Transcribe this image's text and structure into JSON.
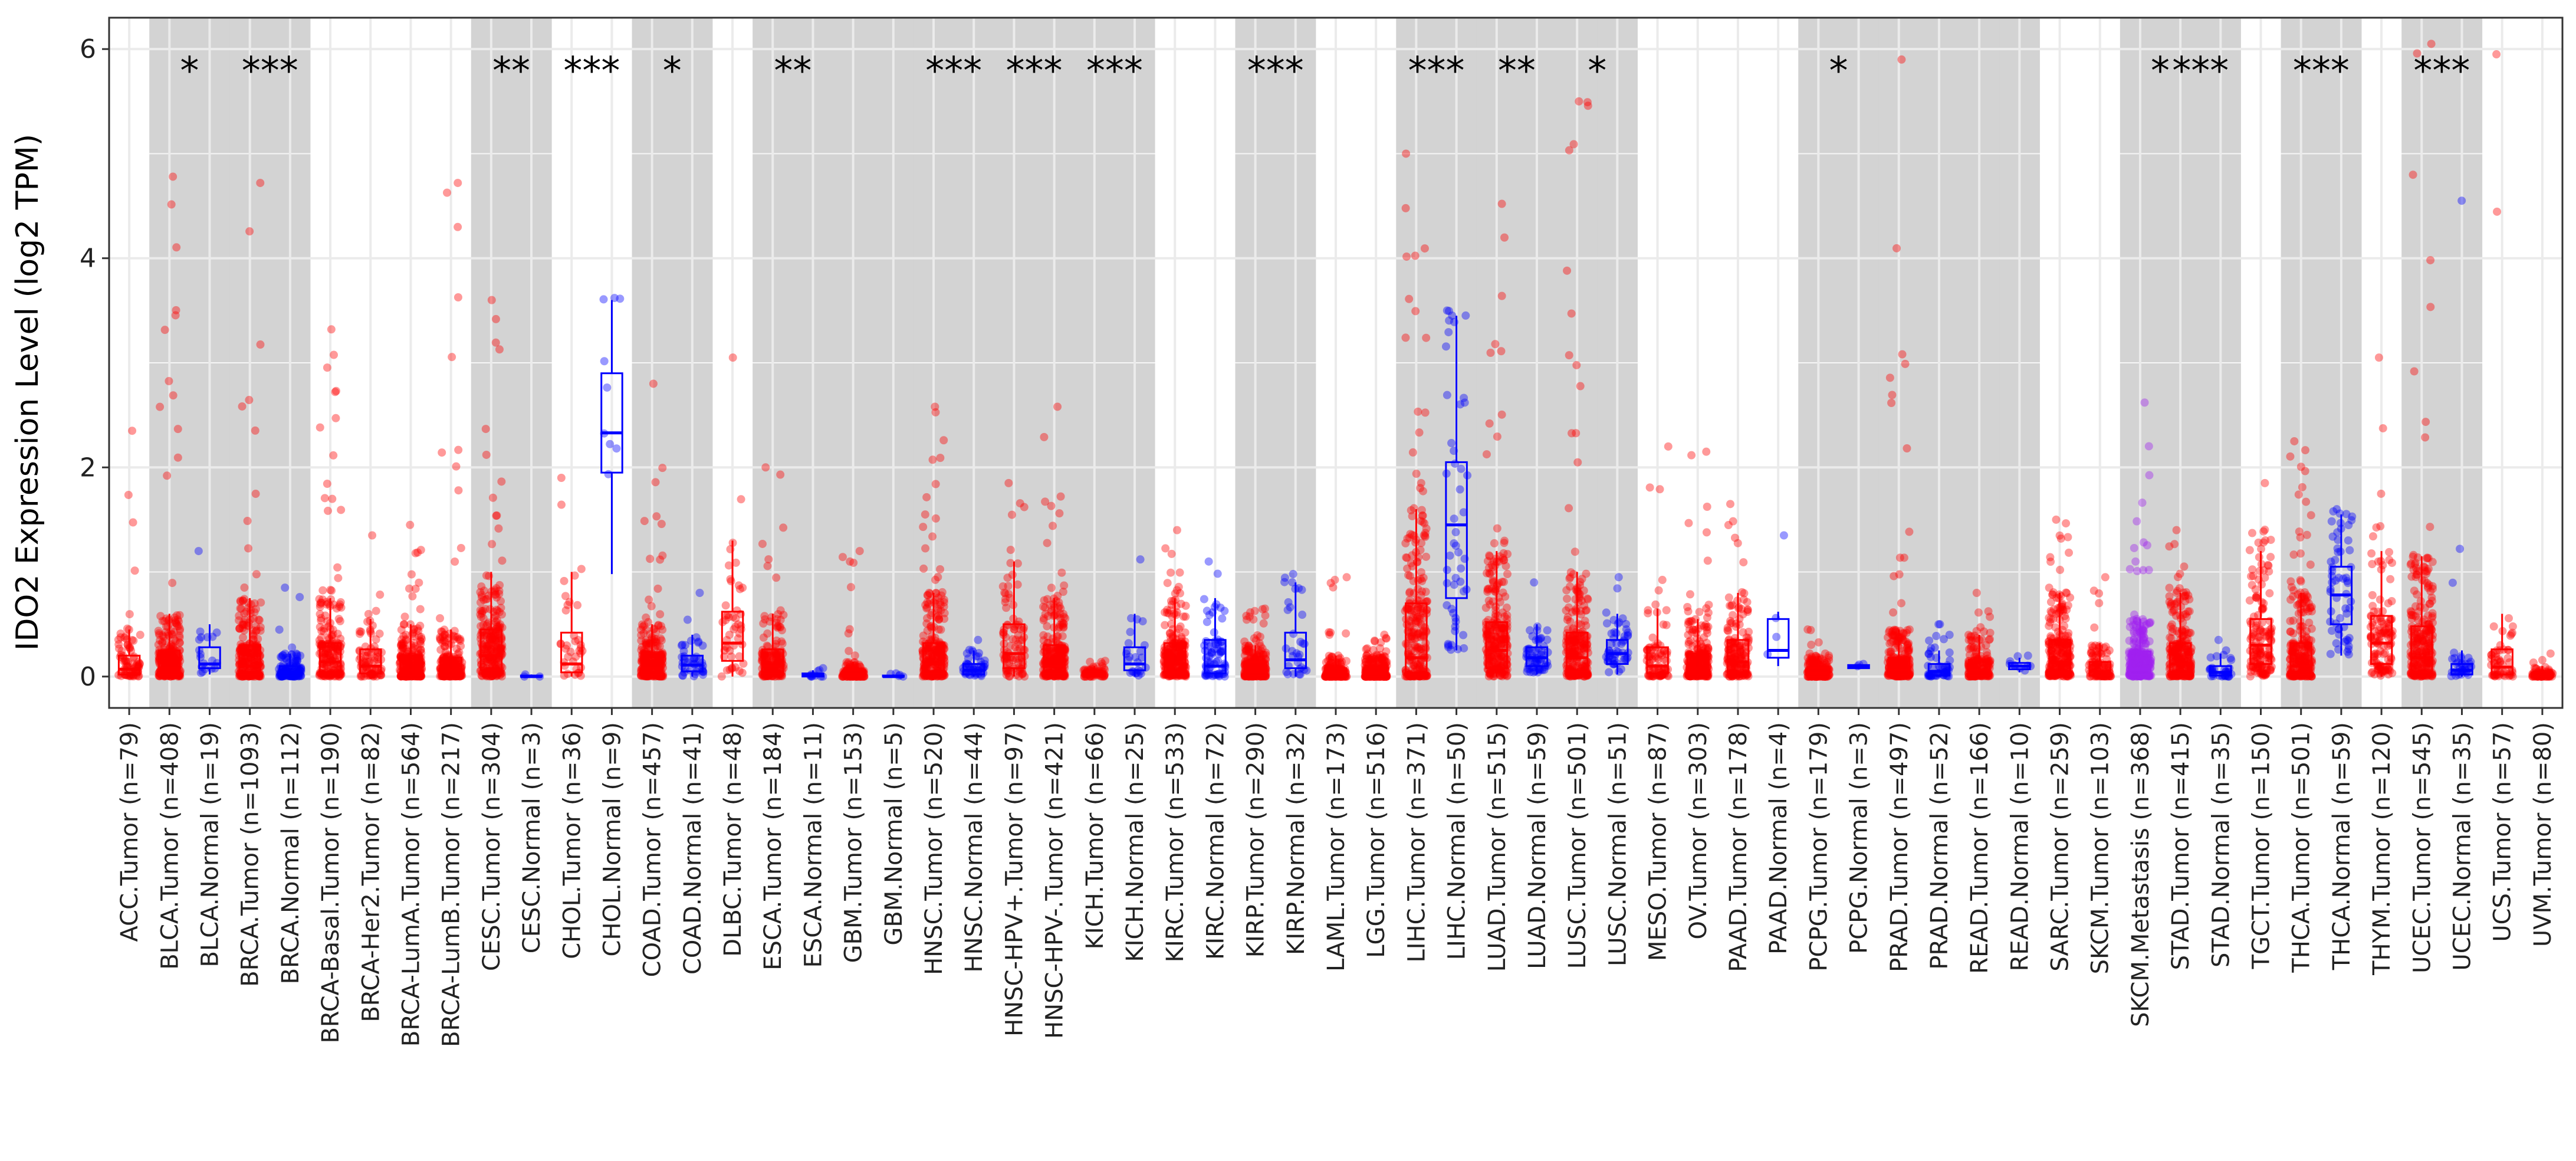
{
  "chart_data": {
    "type": "box",
    "title": "",
    "ylabel": "IDO2 Expression Level (log2 TPM)",
    "xlabel": "",
    "ylim": [
      -0.3,
      6.3
    ],
    "yticks": [
      0,
      2,
      4,
      6
    ],
    "ytick_labels": [
      "0",
      "2",
      "4",
      "6"
    ],
    "grid": true,
    "colors": {
      "tumor": "#ff0000",
      "normal": "#0000ff",
      "metastasis": "#a020f0",
      "shade": "#d3d3d3"
    },
    "groups": [
      {
        "label": "ACC.Tumor (n=79)",
        "kind": "tumor",
        "shaded": false,
        "sig": "",
        "q1": 0.02,
        "median": 0.07,
        "q3": 0.2,
        "lo": 0.0,
        "hi": 0.45,
        "max": 2.35
      },
      {
        "label": "BLCA.Tumor (n=408)",
        "kind": "tumor",
        "shaded": true,
        "sig": "*",
        "q1": 0.02,
        "median": 0.08,
        "q3": 0.25,
        "lo": 0.0,
        "hi": 0.6,
        "max": 4.78
      },
      {
        "label": "BLCA.Normal (n=19)",
        "kind": "normal",
        "shaded": true,
        "sig": "",
        "q1": 0.08,
        "median": 0.12,
        "q3": 0.28,
        "lo": 0.02,
        "hi": 0.5,
        "max": 1.2
      },
      {
        "label": "BRCA.Tumor (n=1093)",
        "kind": "tumor",
        "shaded": true,
        "sig": "***",
        "q1": 0.02,
        "median": 0.1,
        "q3": 0.3,
        "lo": 0.0,
        "hi": 0.75,
        "max": 4.72
      },
      {
        "label": "BRCA.Normal (n=112)",
        "kind": "normal",
        "shaded": true,
        "sig": "",
        "q1": 0.01,
        "median": 0.04,
        "q3": 0.1,
        "lo": 0.0,
        "hi": 0.22,
        "max": 0.85
      },
      {
        "label": "BRCA-Basal.Tumor (n=190)",
        "kind": "tumor",
        "shaded": false,
        "sig": "",
        "q1": 0.04,
        "median": 0.14,
        "q3": 0.32,
        "lo": 0.0,
        "hi": 0.75,
        "max": 3.32
      },
      {
        "label": "BRCA-Her2.Tumor (n=82)",
        "kind": "tumor",
        "shaded": false,
        "sig": "",
        "q1": 0.03,
        "median": 0.1,
        "q3": 0.26,
        "lo": 0.0,
        "hi": 0.55,
        "max": 1.35
      },
      {
        "label": "BRCA-LumA.Tumor (n=564)",
        "kind": "tumor",
        "shaded": false,
        "sig": "",
        "q1": 0.01,
        "median": 0.06,
        "q3": 0.2,
        "lo": 0.0,
        "hi": 0.5,
        "max": 1.45
      },
      {
        "label": "BRCA-LumB.Tumor (n=217)",
        "kind": "tumor",
        "shaded": false,
        "sig": "",
        "q1": 0.01,
        "median": 0.06,
        "q3": 0.18,
        "lo": 0.0,
        "hi": 0.45,
        "max": 4.72
      },
      {
        "label": "CESC.Tumor (n=304)",
        "kind": "tumor",
        "shaded": true,
        "sig": "**",
        "q1": 0.06,
        "median": 0.2,
        "q3": 0.45,
        "lo": 0.0,
        "hi": 1.0,
        "max": 3.6
      },
      {
        "label": "CESC.Normal (n=3)",
        "kind": "normal",
        "shaded": true,
        "sig": "",
        "q1": 0.0,
        "median": 0.0,
        "q3": 0.01,
        "lo": 0.0,
        "hi": 0.02,
        "max": 0.02
      },
      {
        "label": "CHOL.Tumor (n=36)",
        "kind": "tumor",
        "shaded": false,
        "sig": "***",
        "q1": 0.04,
        "median": 0.12,
        "q3": 0.42,
        "lo": 0.0,
        "hi": 1.0,
        "max": 1.9
      },
      {
        "label": "CHOL.Normal (n=9)",
        "kind": "normal",
        "shaded": false,
        "sig": "",
        "q1": 1.95,
        "median": 2.33,
        "q3": 2.9,
        "lo": 0.98,
        "hi": 3.6,
        "max": 3.62
      },
      {
        "label": "COAD.Tumor (n=457)",
        "kind": "tumor",
        "shaded": true,
        "sig": "*",
        "q1": 0.02,
        "median": 0.08,
        "q3": 0.22,
        "lo": 0.0,
        "hi": 0.5,
        "max": 2.8
      },
      {
        "label": "COAD.Normal (n=41)",
        "kind": "normal",
        "shaded": true,
        "sig": "",
        "q1": 0.05,
        "median": 0.11,
        "q3": 0.2,
        "lo": 0.0,
        "hi": 0.4,
        "max": 0.8
      },
      {
        "label": "DLBC.Tumor (n=48)",
        "kind": "tumor",
        "shaded": false,
        "sig": "",
        "q1": 0.15,
        "median": 0.32,
        "q3": 0.62,
        "lo": 0.0,
        "hi": 1.3,
        "max": 3.05
      },
      {
        "label": "ESCA.Tumor (n=184)",
        "kind": "tumor",
        "shaded": true,
        "sig": "**",
        "q1": 0.03,
        "median": 0.1,
        "q3": 0.26,
        "lo": 0.0,
        "hi": 0.6,
        "max": 2.0
      },
      {
        "label": "ESCA.Normal (n=11)",
        "kind": "normal",
        "shaded": true,
        "sig": "",
        "q1": 0.0,
        "median": 0.01,
        "q3": 0.03,
        "lo": 0.0,
        "hi": 0.06,
        "max": 0.08
      },
      {
        "label": "GBM.Tumor (n=153)",
        "kind": "tumor",
        "shaded": true,
        "sig": "",
        "q1": 0.0,
        "median": 0.02,
        "q3": 0.06,
        "lo": 0.0,
        "hi": 0.14,
        "max": 1.2
      },
      {
        "label": "GBM.Normal (n=5)",
        "kind": "normal",
        "shaded": true,
        "sig": "",
        "q1": 0.0,
        "median": 0.0,
        "q3": 0.01,
        "lo": 0.0,
        "hi": 0.02,
        "max": 0.03
      },
      {
        "label": "HNSC.Tumor (n=520)",
        "kind": "tumor",
        "shaded": true,
        "sig": "***",
        "q1": 0.03,
        "median": 0.12,
        "q3": 0.32,
        "lo": 0.0,
        "hi": 0.8,
        "max": 2.58
      },
      {
        "label": "HNSC.Normal (n=44)",
        "kind": "normal",
        "shaded": true,
        "sig": "",
        "q1": 0.02,
        "median": 0.06,
        "q3": 0.12,
        "lo": 0.0,
        "hi": 0.25,
        "max": 0.35
      },
      {
        "label": "HNSC-HPV+.Tumor (n=97)",
        "kind": "tumor",
        "shaded": true,
        "sig": "***",
        "q1": 0.08,
        "median": 0.22,
        "q3": 0.5,
        "lo": 0.0,
        "hi": 1.1,
        "max": 1.85
      },
      {
        "label": "HNSC-HPV-.Tumor (n=421)",
        "kind": "tumor",
        "shaded": true,
        "sig": "",
        "q1": 0.03,
        "median": 0.1,
        "q3": 0.3,
        "lo": 0.0,
        "hi": 0.75,
        "max": 2.58
      },
      {
        "label": "KICH.Tumor (n=66)",
        "kind": "tumor",
        "shaded": true,
        "sig": "***",
        "q1": 0.0,
        "median": 0.02,
        "q3": 0.05,
        "lo": 0.0,
        "hi": 0.1,
        "max": 0.15
      },
      {
        "label": "KICH.Normal (n=25)",
        "kind": "normal",
        "shaded": true,
        "sig": "",
        "q1": 0.06,
        "median": 0.12,
        "q3": 0.28,
        "lo": 0.0,
        "hi": 0.6,
        "max": 1.12
      },
      {
        "label": "KIRC.Tumor (n=533)",
        "kind": "tumor",
        "shaded": false,
        "sig": "",
        "q1": 0.04,
        "median": 0.12,
        "q3": 0.32,
        "lo": 0.0,
        "hi": 0.75,
        "max": 1.4
      },
      {
        "label": "KIRC.Normal (n=72)",
        "kind": "normal",
        "shaded": false,
        "sig": "",
        "q1": 0.03,
        "median": 0.1,
        "q3": 0.35,
        "lo": 0.0,
        "hi": 0.75,
        "max": 1.1
      },
      {
        "label": "KIRP.Tumor (n=290)",
        "kind": "tumor",
        "shaded": true,
        "sig": "***",
        "q1": 0.01,
        "median": 0.05,
        "q3": 0.14,
        "lo": 0.0,
        "hi": 0.3,
        "max": 0.65
      },
      {
        "label": "KIRP.Normal (n=32)",
        "kind": "normal",
        "shaded": true,
        "sig": "",
        "q1": 0.08,
        "median": 0.16,
        "q3": 0.42,
        "lo": 0.0,
        "hi": 0.9,
        "max": 0.98
      },
      {
        "label": "LAML.Tumor (n=173)",
        "kind": "tumor",
        "shaded": false,
        "sig": "",
        "q1": 0.0,
        "median": 0.02,
        "q3": 0.08,
        "lo": 0.0,
        "hi": 0.2,
        "max": 0.95
      },
      {
        "label": "LGG.Tumor (n=516)",
        "kind": "tumor",
        "shaded": false,
        "sig": "",
        "q1": 0.0,
        "median": 0.03,
        "q3": 0.08,
        "lo": 0.0,
        "hi": 0.2,
        "max": 0.4
      },
      {
        "label": "LIHC.Tumor (n=371)",
        "kind": "tumor",
        "shaded": true,
        "sig": "***",
        "q1": 0.02,
        "median": 0.18,
        "q3": 0.7,
        "lo": 0.0,
        "hi": 1.6,
        "max": 5.0
      },
      {
        "label": "LIHC.Normal (n=50)",
        "kind": "normal",
        "shaded": true,
        "sig": "",
        "q1": 0.75,
        "median": 1.45,
        "q3": 2.05,
        "lo": 0.25,
        "hi": 3.45,
        "max": 3.5
      },
      {
        "label": "LUAD.Tumor (n=515)",
        "kind": "tumor",
        "shaded": true,
        "sig": "**",
        "q1": 0.08,
        "median": 0.25,
        "q3": 0.52,
        "lo": 0.0,
        "hi": 1.2,
        "max": 4.52
      },
      {
        "label": "LUAD.Normal (n=59)",
        "kind": "normal",
        "shaded": true,
        "sig": "",
        "q1": 0.1,
        "median": 0.18,
        "q3": 0.28,
        "lo": 0.02,
        "hi": 0.5,
        "max": 0.9
      },
      {
        "label": "LUSC.Tumor (n=501)",
        "kind": "tumor",
        "shaded": true,
        "sig": "*",
        "q1": 0.05,
        "median": 0.18,
        "q3": 0.42,
        "lo": 0.0,
        "hi": 1.0,
        "max": 5.5
      },
      {
        "label": "LUSC.Normal (n=51)",
        "kind": "normal",
        "shaded": true,
        "sig": "",
        "q1": 0.12,
        "median": 0.22,
        "q3": 0.35,
        "lo": 0.02,
        "hi": 0.6,
        "max": 0.95
      },
      {
        "label": "MESO.Tumor (n=87)",
        "kind": "tumor",
        "shaded": false,
        "sig": "",
        "q1": 0.03,
        "median": 0.1,
        "q3": 0.28,
        "lo": 0.0,
        "hi": 0.65,
        "max": 2.2
      },
      {
        "label": "OV.Tumor (n=303)",
        "kind": "tumor",
        "shaded": false,
        "sig": "",
        "q1": 0.02,
        "median": 0.08,
        "q3": 0.22,
        "lo": 0.0,
        "hi": 0.55,
        "max": 2.15
      },
      {
        "label": "PAAD.Tumor (n=178)",
        "kind": "tumor",
        "shaded": false,
        "sig": "",
        "q1": 0.04,
        "median": 0.14,
        "q3": 0.35,
        "lo": 0.0,
        "hi": 0.8,
        "max": 1.65
      },
      {
        "label": "PAAD.Normal (n=4)",
        "kind": "normal",
        "shaded": false,
        "sig": "",
        "q1": 0.18,
        "median": 0.25,
        "q3": 0.55,
        "lo": 0.1,
        "hi": 0.62,
        "max": 1.35
      },
      {
        "label": "PCPG.Tumor (n=179)",
        "kind": "tumor",
        "shaded": true,
        "sig": "*",
        "q1": 0.0,
        "median": 0.03,
        "q3": 0.08,
        "lo": 0.0,
        "hi": 0.2,
        "max": 0.45
      },
      {
        "label": "PCPG.Normal (n=3)",
        "kind": "normal",
        "shaded": true,
        "sig": "",
        "q1": 0.08,
        "median": 0.1,
        "q3": 0.11,
        "lo": 0.07,
        "hi": 0.12,
        "max": 0.12
      },
      {
        "label": "PRAD.Tumor (n=497)",
        "kind": "tumor",
        "shaded": true,
        "sig": "",
        "q1": 0.02,
        "median": 0.06,
        "q3": 0.18,
        "lo": 0.0,
        "hi": 0.45,
        "max": 5.9
      },
      {
        "label": "PRAD.Normal (n=52)",
        "kind": "normal",
        "shaded": true,
        "sig": "",
        "q1": 0.01,
        "median": 0.05,
        "q3": 0.12,
        "lo": 0.0,
        "hi": 0.25,
        "max": 0.5
      },
      {
        "label": "READ.Tumor (n=166)",
        "kind": "tumor",
        "shaded": true,
        "sig": "",
        "q1": 0.01,
        "median": 0.06,
        "q3": 0.16,
        "lo": 0.0,
        "hi": 0.4,
        "max": 0.8
      },
      {
        "label": "READ.Normal (n=10)",
        "kind": "normal",
        "shaded": true,
        "sig": "",
        "q1": 0.07,
        "median": 0.1,
        "q3": 0.13,
        "lo": 0.04,
        "hi": 0.18,
        "max": 0.2
      },
      {
        "label": "SARC.Tumor (n=259)",
        "kind": "tumor",
        "shaded": false,
        "sig": "",
        "q1": 0.04,
        "median": 0.14,
        "q3": 0.35,
        "lo": 0.0,
        "hi": 0.8,
        "max": 1.5
      },
      {
        "label": "SKCM.Tumor (n=103)",
        "kind": "tumor",
        "shaded": false,
        "sig": "",
        "q1": 0.01,
        "median": 0.05,
        "q3": 0.14,
        "lo": 0.0,
        "hi": 0.32,
        "max": 0.95
      },
      {
        "label": "SKCM.Metastasis (n=368)",
        "kind": "metastasis",
        "shaded": true,
        "sig": "*",
        "q1": 0.02,
        "median": 0.07,
        "q3": 0.24,
        "lo": 0.0,
        "hi": 0.55,
        "max": 2.62
      },
      {
        "label": "STAD.Tumor (n=415)",
        "kind": "tumor",
        "shaded": true,
        "sig": "***",
        "q1": 0.03,
        "median": 0.12,
        "q3": 0.32,
        "lo": 0.0,
        "hi": 0.8,
        "max": 1.4
      },
      {
        "label": "STAD.Normal (n=35)",
        "kind": "normal",
        "shaded": true,
        "sig": "",
        "q1": 0.01,
        "median": 0.04,
        "q3": 0.1,
        "lo": 0.0,
        "hi": 0.22,
        "max": 0.35
      },
      {
        "label": "TGCT.Tumor (n=150)",
        "kind": "tumor",
        "shaded": false,
        "sig": "",
        "q1": 0.12,
        "median": 0.3,
        "q3": 0.55,
        "lo": 0.0,
        "hi": 1.2,
        "max": 1.85
      },
      {
        "label": "THCA.Tumor (n=501)",
        "kind": "tumor",
        "shaded": true,
        "sig": "***",
        "q1": 0.02,
        "median": 0.1,
        "q3": 0.32,
        "lo": 0.0,
        "hi": 0.8,
        "max": 2.25
      },
      {
        "label": "THCA.Normal (n=59)",
        "kind": "normal",
        "shaded": true,
        "sig": "",
        "q1": 0.5,
        "median": 0.78,
        "q3": 1.05,
        "lo": 0.2,
        "hi": 1.55,
        "max": 1.6
      },
      {
        "label": "THYM.Tumor (n=120)",
        "kind": "tumor",
        "shaded": false,
        "sig": "",
        "q1": 0.12,
        "median": 0.32,
        "q3": 0.58,
        "lo": 0.0,
        "hi": 1.2,
        "max": 3.05
      },
      {
        "label": "UCEC.Tumor (n=545)",
        "kind": "tumor",
        "shaded": true,
        "sig": "***",
        "q1": 0.04,
        "median": 0.18,
        "q3": 0.48,
        "lo": 0.0,
        "hi": 1.15,
        "max": 6.05
      },
      {
        "label": "UCEC.Normal (n=35)",
        "kind": "normal",
        "shaded": true,
        "sig": "",
        "q1": 0.02,
        "median": 0.06,
        "q3": 0.12,
        "lo": 0.0,
        "hi": 0.25,
        "max": 4.55
      },
      {
        "label": "UCS.Tumor (n=57)",
        "kind": "tumor",
        "shaded": false,
        "sig": "",
        "q1": 0.02,
        "median": 0.09,
        "q3": 0.26,
        "lo": 0.0,
        "hi": 0.6,
        "max": 5.95
      },
      {
        "label": "UVM.Tumor (n=80)",
        "kind": "tumor",
        "shaded": false,
        "sig": "",
        "q1": 0.0,
        "median": 0.01,
        "q3": 0.04,
        "lo": 0.0,
        "hi": 0.1,
        "max": 0.22
      }
    ]
  }
}
